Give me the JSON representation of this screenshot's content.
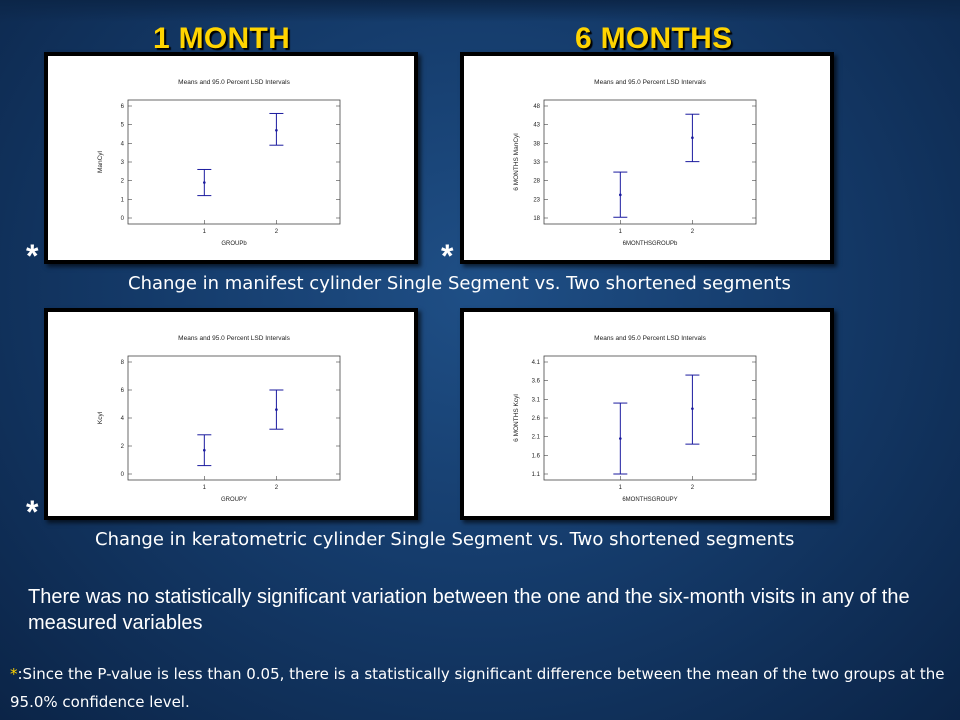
{
  "headings": {
    "left": "1 MONTH",
    "right": "6 MONTHS"
  },
  "significance_mark": "*",
  "captions": {
    "manifest": "Change in manifest cylinder Single Segment vs. Two shortened segments",
    "keratometric": "Change in keratometric cylinder Single Segment vs. Two shortened segments"
  },
  "statement": "There was no statistically significant variation between the one and the six-month visits in any of the measured variables",
  "footnote": {
    "marker": "*",
    "text": ":Since the P-value is less than 0.05, there is a statistically significant difference between the mean of the two groups at the 95.0% confidence level."
  },
  "chart_data": [
    {
      "type": "scatter",
      "title": "Means and 95.0 Percent LSD Intervals",
      "xlabel": "GROUPb",
      "ylabel": "ManCyl",
      "categories": [
        "1",
        "2"
      ],
      "ylim": [
        0,
        6
      ],
      "yticks": [
        0,
        1,
        2,
        3,
        4,
        5,
        6
      ],
      "means": [
        1.9,
        4.7
      ],
      "lower": [
        1.2,
        3.9
      ],
      "upper": [
        2.6,
        5.6
      ]
    },
    {
      "type": "scatter",
      "title": "Means and 95.0 Percent LSD Intervals",
      "xlabel": "6MONTHSGROUPb",
      "ylabel": "6 MONTHS ManCyl",
      "categories": [
        "1",
        "2"
      ],
      "ylim": [
        18,
        48
      ],
      "yticks": [
        18,
        23,
        28,
        33,
        38,
        43,
        48
      ],
      "means": [
        24.2,
        39.5
      ],
      "lower": [
        18.2,
        33.1
      ],
      "upper": [
        30.3,
        45.8
      ]
    },
    {
      "type": "scatter",
      "title": "Means and 95.0 Percent LSD Intervals",
      "xlabel": "GROUPY",
      "ylabel": "Kcyl",
      "categories": [
        "1",
        "2"
      ],
      "ylim": [
        0,
        8
      ],
      "yticks": [
        0,
        2,
        4,
        6,
        8
      ],
      "means": [
        1.7,
        4.6
      ],
      "lower": [
        0.6,
        3.2
      ],
      "upper": [
        2.8,
        6.0
      ]
    },
    {
      "type": "scatter",
      "title": "Means and 95.0 Percent LSD Intervals",
      "xlabel": "6MONTHSGROUPY",
      "ylabel": "6 MONTHS Kcyl",
      "categories": [
        "1",
        "2"
      ],
      "ylim": [
        1.1,
        4.1
      ],
      "yticks": [
        1.1,
        1.6,
        2.1,
        2.6,
        3.1,
        3.6,
        4.1
      ],
      "means": [
        2.05,
        2.85
      ],
      "lower": [
        1.1,
        1.9
      ],
      "upper": [
        3.0,
        3.75
      ]
    }
  ]
}
